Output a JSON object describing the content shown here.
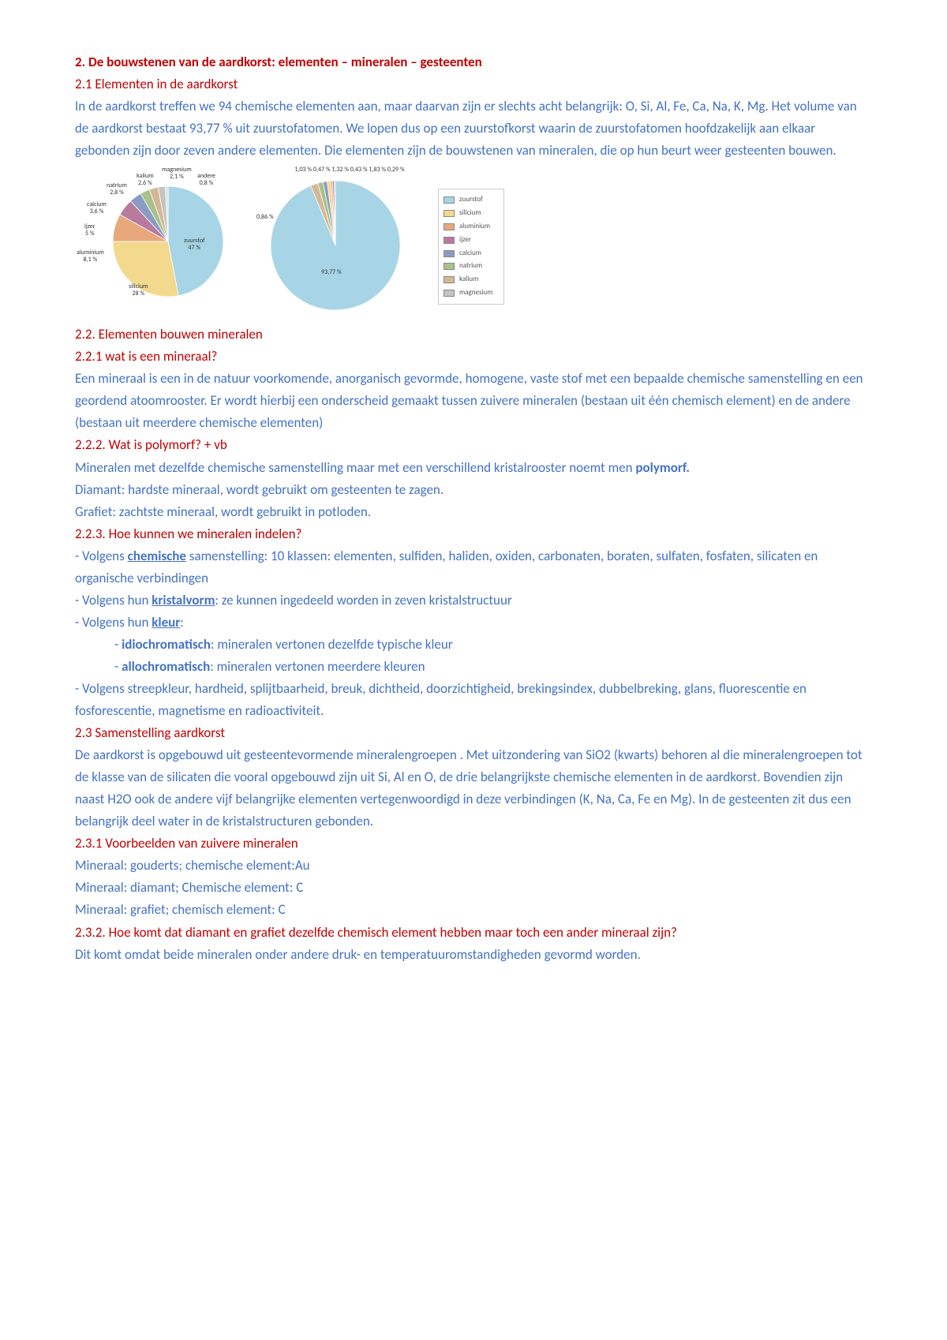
{
  "colors": {
    "heading": "#c00000",
    "body": "#4472c4",
    "zuurstof": "#a8d5e5",
    "silicium": "#f2d98d",
    "aluminium": "#e8a87c",
    "ijzer": "#b87b9e",
    "calcium": "#8a9bc4",
    "natrium": "#a8c28a",
    "kalium": "#d4b896",
    "magnesium": "#c4c4c4"
  },
  "typography": {
    "body_fontsize": 17,
    "line_height": 1.65,
    "tiny_label_fontsize": 8,
    "legend_fontsize": 9
  },
  "h2": "2. De bouwstenen van de aardkorst: elementen – mineralen – gesteenten",
  "h21": "2.1 Elementen in de aardkorst",
  "p21": "In de aardkorst treffen we 94 chemische elementen aan, maar daarvan zijn er slechts acht belangrijk: O, Si, Al, Fe, Ca, Na, K, Mg. Het volume van de aardkorst bestaat 93,77 % uit zuurstofatomen. We lopen dus op een zuurstofkorst waarin de zuurstofatomen hoofdzakelijk aan elkaar gebonden zijn door zeven andere elementen. Die elementen zijn de bouwstenen van mineralen, die op hun beurt weer gesteenten bouwen.",
  "pie1": {
    "type": "pie",
    "slices": [
      {
        "label": "zuurstof",
        "pct": 47.0,
        "color": "#a8d5e5"
      },
      {
        "label": "silicium",
        "pct": 28.0,
        "color": "#f2d98d"
      },
      {
        "label": "aluminium",
        "pct": 8.1,
        "color": "#e8a87c"
      },
      {
        "label": "ijzer",
        "pct": 5.0,
        "color": "#b87b9e"
      },
      {
        "label": "calcium",
        "pct": 3.6,
        "color": "#8a9bc4"
      },
      {
        "label": "natrium",
        "pct": 2.8,
        "color": "#a8c28a"
      },
      {
        "label": "kalium",
        "pct": 2.6,
        "color": "#d4b896"
      },
      {
        "label": "magnesium",
        "pct": 2.1,
        "color": "#c4c4c4"
      },
      {
        "label": "andere",
        "pct": 0.8,
        "color": "#dddddd"
      }
    ],
    "radius": 70,
    "labels": {
      "zuurstof": "zuurstof\n47 %",
      "silicium": "silicium\n28 %",
      "aluminium": "aluminium\n8,1 %",
      "ijzer": "ijzer\n5 %",
      "calcium": "calcium\n3,6 %",
      "natrium": "natrium\n2,8 %",
      "kalium": "kalium\n2,6 %",
      "magnesium": "magnesium\n2,1 %",
      "andere": "andere\n0,8 %"
    }
  },
  "pie2": {
    "type": "pie",
    "slices": [
      {
        "label": "zuurstof",
        "pct": 93.77,
        "color": "#a8d5e5"
      },
      {
        "label": "kalium",
        "pct": 1.83,
        "color": "#d4b896"
      },
      {
        "label": "natrium",
        "pct": 1.32,
        "color": "#a8c28a"
      },
      {
        "label": "calcium",
        "pct": 1.03,
        "color": "#8a9bc4"
      },
      {
        "label": "silicium",
        "pct": 0.86,
        "color": "#f2d98d"
      },
      {
        "label": "aluminium",
        "pct": 0.47,
        "color": "#e8a87c"
      },
      {
        "label": "ijzer",
        "pct": 0.43,
        "color": "#b87b9e"
      },
      {
        "label": "magnesium",
        "pct": 0.29,
        "color": "#c4c4c4"
      }
    ],
    "radius": 82,
    "center_label": "93,77 %",
    "top_labels": "1,03 %  0,47 %  1,32 %  0,43 %  1,83 %  0,29 %",
    "side_label": "0,86 %"
  },
  "legend": [
    "zuurstof",
    "silicium",
    "aluminium",
    "ijzer",
    "calcium",
    "natrium",
    "kalium",
    "magnesium"
  ],
  "h22": "2.2. Elementen bouwen mineralen",
  "h221": "2.2.1 wat is een mineraal?",
  "p221": "Een mineraal is een in de natuur voorkomende, anorganisch gevormde, homogene, vaste stof met een bepaalde chemische samenstelling en een geordend atoomrooster. Er wordt hierbij een onderscheid gemaakt tussen zuivere mineralen (bestaan uit één chemisch element) en de andere (bestaan uit meerdere chemische elementen)",
  "h222": "2.2.2. Wat is polymorf? + vb",
  "p222a": "Mineralen met dezelfde chemische samenstelling maar met een verschillend kristalrooster noemt men ",
  "p222b": "polymorf.",
  "p222c": "Diamant: hardste mineraal, wordt gebruikt om gesteenten te zagen.",
  "p222d": "Grafiet: zachtste mineraal, wordt gebruikt in potloden.",
  "h223": "2.2.3. Hoe kunnen we mineralen indelen?",
  "p223a_pre": "- Volgens ",
  "p223a_key": "chemische",
  "p223a_post": " samenstelling: 10 klassen: elementen, sulfiden, haliden, oxiden, carbonaten, boraten, sulfaten, fosfaten, silicaten en organische verbindingen",
  "p223b_pre": "- Volgens hun ",
  "p223b_key": "kristalvorm",
  "p223b_post": ": ze kunnen ingedeeld worden in zeven kristalstructuur",
  "p223c_pre": "- Volgens hun ",
  "p223c_key": "kleur",
  "p223c_post": ":",
  "p223c1_pre": "- ",
  "p223c1_key": "idiochromatisch",
  "p223c1_post": ": mineralen vertonen dezelfde typische kleur",
  "p223c2_pre": "- ",
  "p223c2_key": "allochromatisch",
  "p223c2_post": ": mineralen vertonen meerdere kleuren",
  "p223d": "-  Volgens streepkleur, hardheid, splijtbaarheid, breuk, dichtheid, doorzichtigheid, brekingsindex, dubbelbreking, glans, fluorescentie en fosforescentie, magnetisme en radioactiviteit.",
  "h23": "2.3 Samenstelling aardkorst",
  "p23": "De aardkorst is opgebouwd uit gesteentevormende mineralengroepen . Met uitzondering van SiO2 (kwarts) behoren al die mineralengroepen tot de klasse van de silicaten die vooral opgebouwd zijn uit Si, Al en O, de drie belangrijkste chemische elementen in de aardkorst. Bovendien zijn naast H2O ook de andere vijf belangrijke elementen vertegenwoordigd in deze verbindingen (K, Na, Ca, Fe en Mg). In de gesteenten zit dus een belangrijk deel water in de kristalstructuren gebonden.",
  "h231": "2.3.1 Voorbeelden van zuivere mineralen",
  "p231a": "Mineraal: gouderts; chemische element:Au",
  "p231b": "Mineraal: diamant; Chemische element: C",
  "p231c": "Mineraal: grafiet; chemisch element: C",
  "h232": "2.3.2. Hoe komt dat diamant en grafiet dezelfde chemisch element hebben maar toch een ander mineraal zijn?",
  "p232": "Dit komt omdat beide mineralen onder andere druk- en temperatuuromstandigheden gevormd worden."
}
